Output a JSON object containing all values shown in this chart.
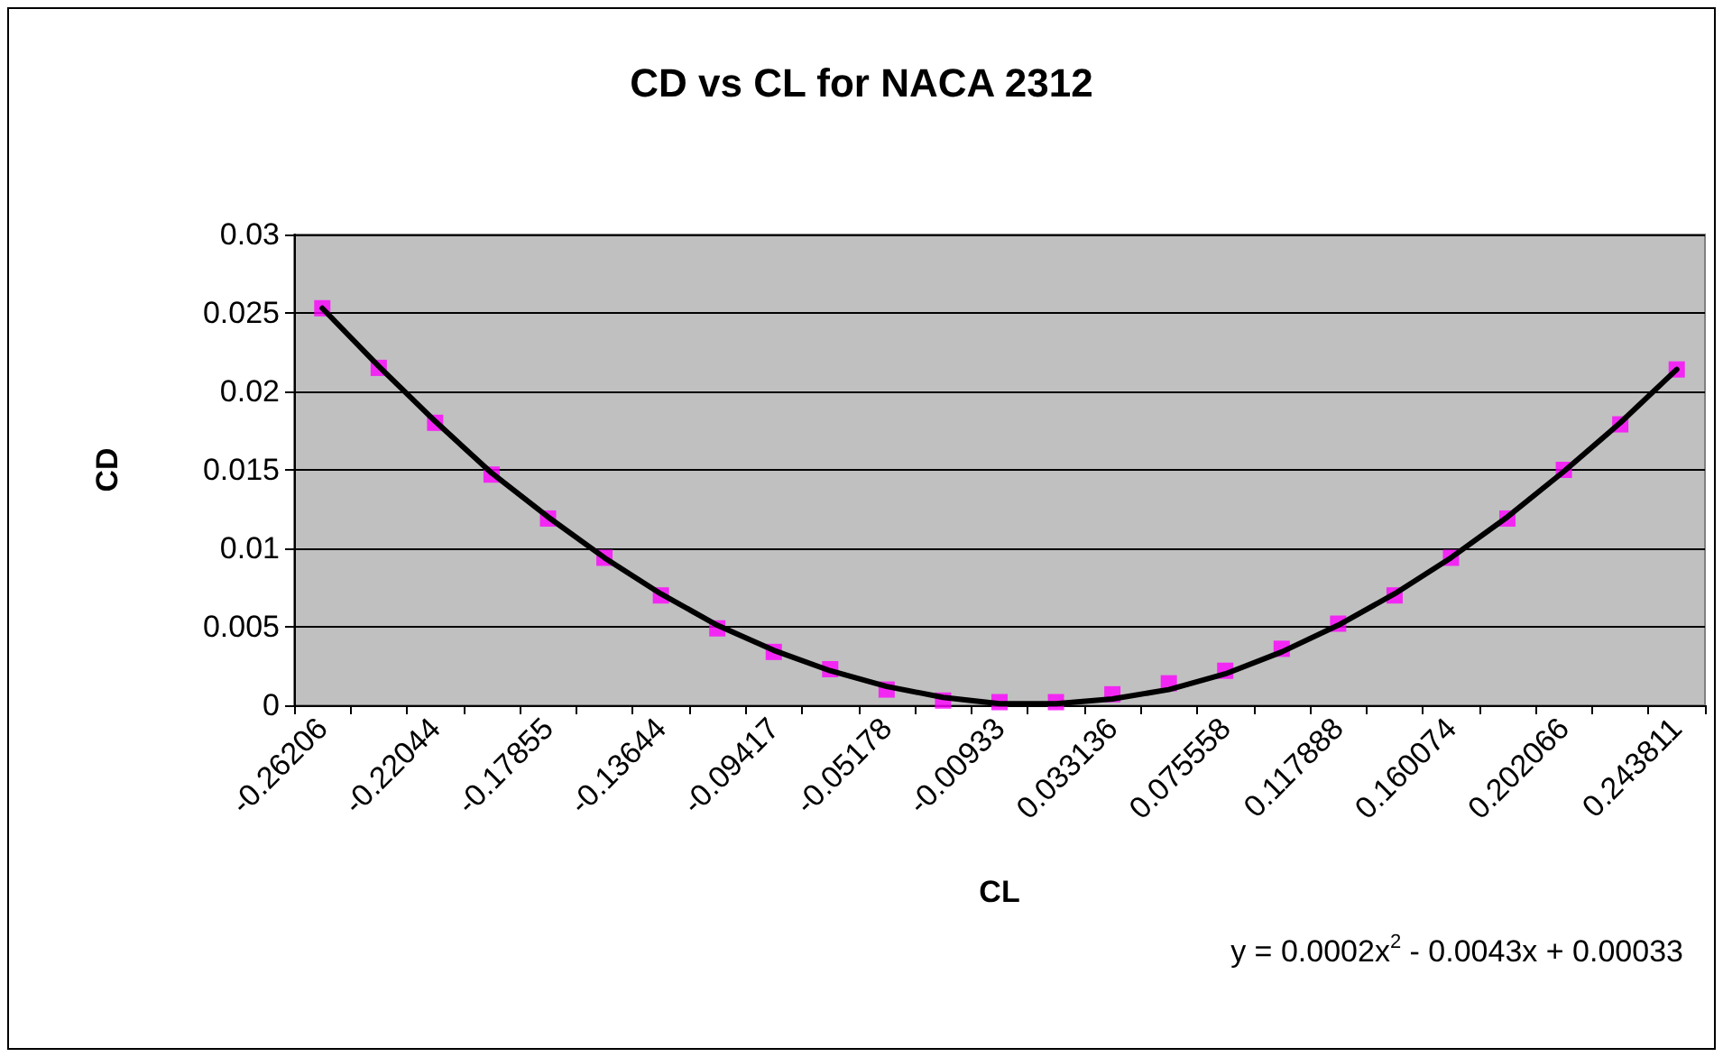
{
  "chart_data": {
    "type": "line",
    "title": "CD vs CL for NACA 2312",
    "xlabel": "CL",
    "ylabel": "CD",
    "categories": [
      "-0.26206",
      null,
      "-0.22044",
      null,
      "-0.17855",
      null,
      "-0.13644",
      null,
      "-0.09417",
      null,
      "-0.05178",
      null,
      "-0.00933",
      null,
      "0.033136",
      null,
      "0.075558",
      null,
      "0.117888",
      null,
      "0.160074",
      null,
      "0.202066",
      null,
      "0.243811"
    ],
    "series": [
      {
        "type": "scatter",
        "marker": "square",
        "color": "#ff00ff",
        "values": [
          0.0253,
          0.0215,
          0.018,
          0.0147,
          0.0119,
          0.0094,
          0.007,
          0.0049,
          0.0034,
          0.0023,
          0.001,
          0.0003,
          0.0002,
          0.0002,
          0.0007,
          0.0014,
          0.0022,
          0.0036,
          0.0052,
          0.007,
          0.0094,
          0.0119,
          0.015,
          0.0179,
          0.0214
        ]
      },
      {
        "marker": "none",
        "color": "#000000",
        "values": [
          0.0253,
          0.0216,
          0.0181,
          0.0148,
          0.012,
          0.0094,
          0.0071,
          0.0051,
          0.0035,
          0.0022,
          0.0012,
          0.0005,
          0.0001,
          0.0001,
          0.0004,
          0.001,
          0.002,
          0.0034,
          0.0051,
          0.0071,
          0.0094,
          0.012,
          0.0149,
          0.018,
          0.0214
        ]
      }
    ],
    "ylim": [
      0,
      0.03
    ],
    "yticks": [
      0,
      0.005,
      0.01,
      0.015,
      0.02,
      0.025,
      0.03
    ],
    "grid": "y",
    "annotations": [
      "y = 0.0002x$^{2}$ - 0.0043x + 0.00033"
    ]
  }
}
